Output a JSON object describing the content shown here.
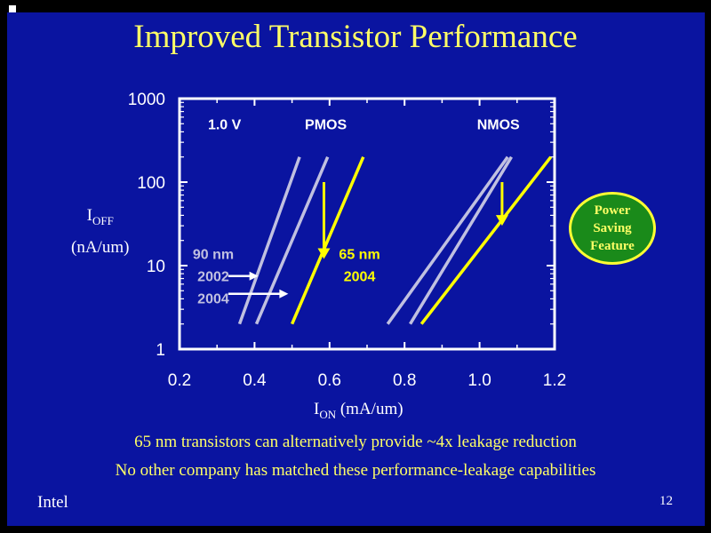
{
  "title": "Improved Transistor Performance",
  "y_axis": {
    "label_main": "I",
    "label_sub": "OFF",
    "label_unit": "(nA/um)"
  },
  "x_axis": {
    "label_main": "I",
    "label_sub": "ON",
    "label_unit": " (mA/um)"
  },
  "notes": [
    "65 nm transistors can alternatively provide ~4x leakage reduction",
    "No other company has matched these performance-leakage capabilities"
  ],
  "badge_text": "Power\nSaving\nFeature",
  "footer": {
    "company": "Intel",
    "page_number": "12"
  },
  "colors": {
    "background": "#0a14a0",
    "gray_series": "#c0c0e0",
    "yellow_series": "#ffff00",
    "badge_fill": "#1a8a1a"
  },
  "chart_data": {
    "type": "line",
    "xlabel": "ION (mA/um)",
    "ylabel": "IOFF (nA/um)",
    "xlim": [
      0.2,
      1.2
    ],
    "ylim": [
      1,
      1000
    ],
    "yscale": "log",
    "x_ticks": [
      "0.2",
      "0.4",
      "0.6",
      "0.8",
      "1.0",
      "1.2"
    ],
    "y_ticks": [
      "1",
      "10",
      "100",
      "1000"
    ],
    "grid": false,
    "annotations": [
      {
        "text": "1.0 V",
        "x": 0.32,
        "y": 500,
        "color": "white"
      },
      {
        "text": "PMOS",
        "x": 0.59,
        "y": 500,
        "color": "white"
      },
      {
        "text": "NMOS",
        "x": 1.05,
        "y": 500,
        "color": "white"
      },
      {
        "text": "90 nm",
        "x": 0.29,
        "y": 14,
        "color": "gray"
      },
      {
        "text": "2002",
        "x": 0.29,
        "y": 7.5,
        "color": "gray"
      },
      {
        "text": "2004",
        "x": 0.29,
        "y": 4.1,
        "color": "gray"
      },
      {
        "text": "65 nm",
        "x": 0.68,
        "y": 14,
        "color": "yellow"
      },
      {
        "text": "2004",
        "x": 0.68,
        "y": 7.5,
        "color": "yellow"
      }
    ],
    "series": [
      {
        "group": "PMOS",
        "color": "gray",
        "x": [
          0.36,
          0.52
        ],
        "y": [
          2,
          200
        ]
      },
      {
        "group": "PMOS",
        "color": "gray",
        "x": [
          0.405,
          0.595
        ],
        "y": [
          2,
          200
        ]
      },
      {
        "group": "PMOS",
        "color": "yellow",
        "x": [
          0.5,
          0.69
        ],
        "y": [
          2,
          200
        ]
      },
      {
        "group": "NMOS",
        "color": "gray",
        "x": [
          0.755,
          1.075
        ],
        "y": [
          2,
          200
        ]
      },
      {
        "group": "NMOS",
        "color": "gray",
        "x": [
          0.815,
          1.085
        ],
        "y": [
          2,
          200
        ]
      },
      {
        "group": "NMOS",
        "color": "yellow",
        "x": [
          0.845,
          1.19
        ],
        "y": [
          2,
          200
        ]
      }
    ],
    "arrows": [
      {
        "kind": "down",
        "color": "yellow",
        "x": 0.585,
        "y_from": 100,
        "y_to": 12
      },
      {
        "kind": "down",
        "color": "yellow",
        "x": 1.06,
        "y_from": 100,
        "y_to": 30
      },
      {
        "kind": "right",
        "color": "white",
        "x_from": 0.33,
        "x_to": 0.41,
        "y": 7.5
      },
      {
        "kind": "right",
        "color": "white",
        "x_from": 0.33,
        "x_to": 0.49,
        "y": 4.6
      }
    ]
  }
}
